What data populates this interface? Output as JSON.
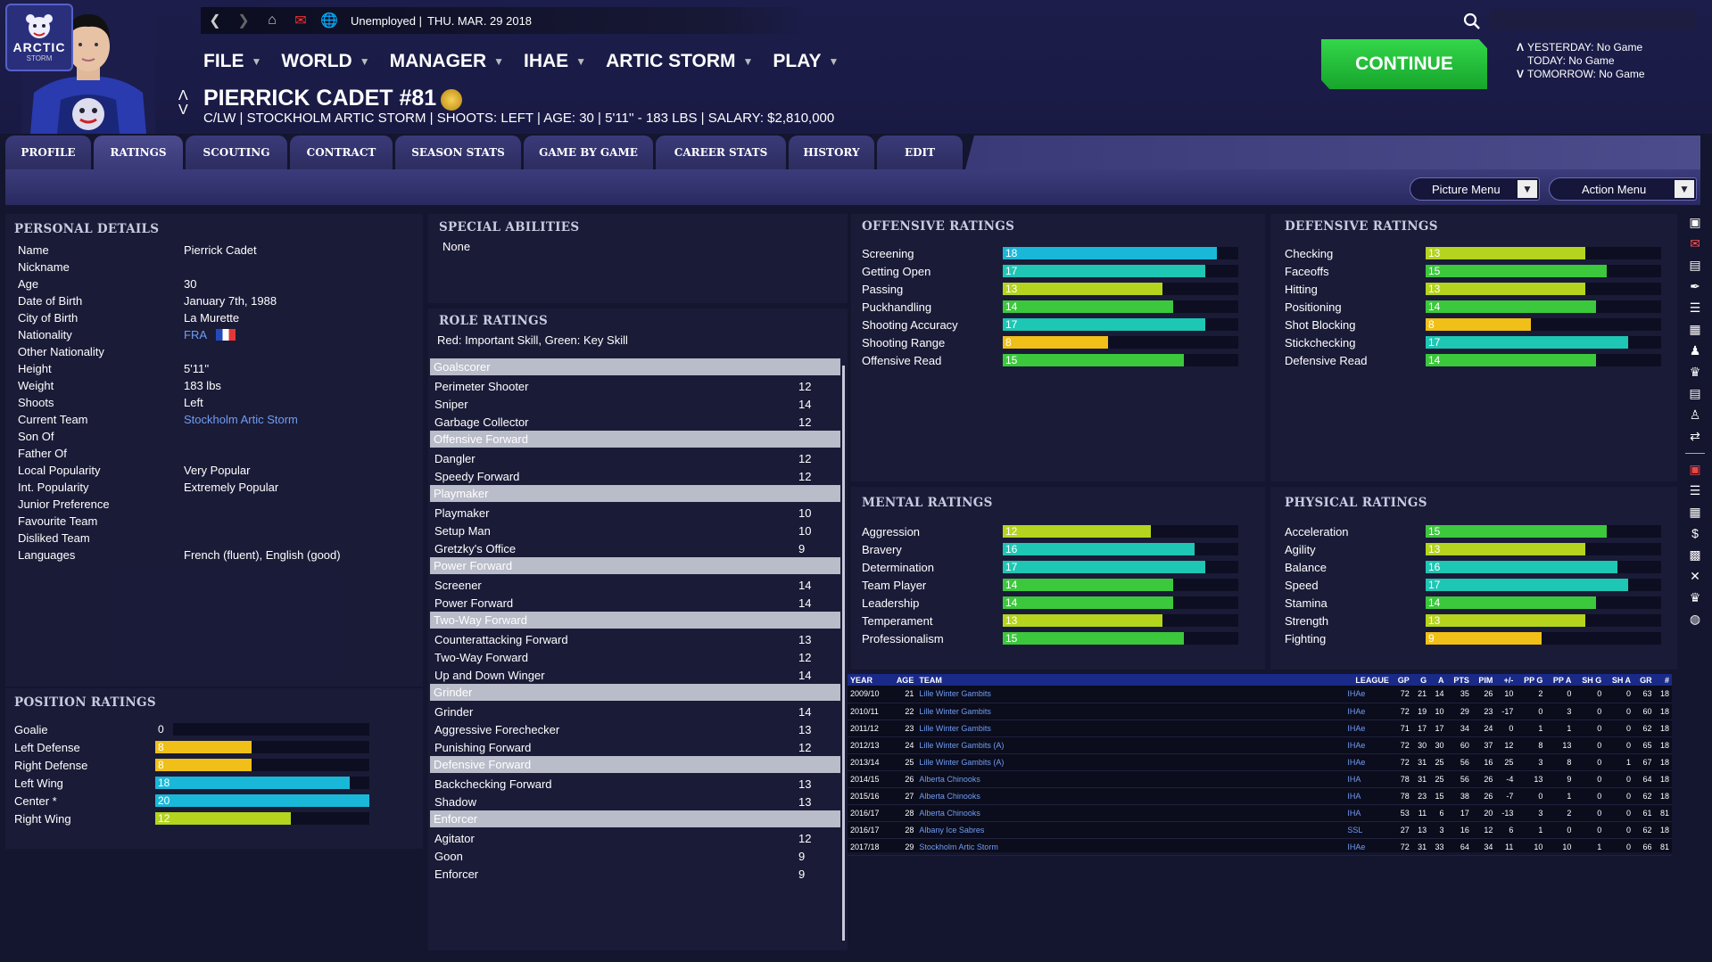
{
  "header": {
    "team_logo_text": "ARCTIC",
    "team_logo_sub": "STORM",
    "status": "Unemployed |",
    "date": "THU. MAR. 29 2018",
    "nav": [
      "FILE",
      "WORLD",
      "MANAGER",
      "IHAE",
      "ARTIC STORM",
      "PLAY"
    ],
    "player_name": "PIERRICK CADET #81",
    "player_info": "C/LW | STOCKHOLM ARTIC STORM | SHOOTS: LEFT | AGE: 30 | 5'11'' - 183 LBS | SALARY: $2,810,000",
    "continue_label": "CONTINUE",
    "schedule": [
      {
        "arrow": "Λ",
        "text": "YESTERDAY: No Game"
      },
      {
        "arrow": "",
        "text": "TODAY: No Game"
      },
      {
        "arrow": "V",
        "text": "TOMORROW: No Game"
      }
    ]
  },
  "tabs": [
    "PROFILE",
    "RATINGS",
    "SCOUTING",
    "CONTRACT",
    "SEASON STATS",
    "GAME BY GAME",
    "CAREER STATS",
    "HISTORY",
    "EDIT"
  ],
  "menus": {
    "picture": "Picture Menu",
    "action": "Action Menu"
  },
  "personal": {
    "title": "PERSONAL DETAILS",
    "rows": [
      {
        "k": "Name",
        "v": "Pierrick Cadet"
      },
      {
        "k": "Nickname",
        "v": ""
      },
      {
        "k": "Age",
        "v": "30"
      },
      {
        "k": "Date of Birth",
        "v": "January 7th, 1988"
      },
      {
        "k": "City of Birth",
        "v": "La Murette"
      },
      {
        "k": "Nationality",
        "v": "FRA",
        "link": true,
        "flag": true
      },
      {
        "k": "Other Nationality",
        "v": ""
      },
      {
        "k": "Height",
        "v": "5'11''"
      },
      {
        "k": "Weight",
        "v": "183 lbs"
      },
      {
        "k": "Shoots",
        "v": "Left"
      },
      {
        "k": "Current Team",
        "v": "Stockholm Artic Storm",
        "link": true
      },
      {
        "k": "Son Of",
        "v": ""
      },
      {
        "k": "Father Of",
        "v": ""
      },
      {
        "k": "Local Popularity",
        "v": "Very Popular"
      },
      {
        "k": "Int. Popularity",
        "v": "Extremely Popular"
      },
      {
        "k": "Junior Preference",
        "v": ""
      },
      {
        "k": "Favourite Team",
        "v": ""
      },
      {
        "k": "Disliked Team",
        "v": ""
      },
      {
        "k": "Languages",
        "v": "French (fluent), English (good)"
      }
    ]
  },
  "position": {
    "title": "POSITION RATINGS",
    "rows": [
      {
        "k": "Goalie",
        "v": 0
      },
      {
        "k": "Left Defense",
        "v": 8
      },
      {
        "k": "Right Defense",
        "v": 8
      },
      {
        "k": "Left Wing",
        "v": 18
      },
      {
        "k": "Center *",
        "v": 20
      },
      {
        "k": "Right Wing",
        "v": 12
      }
    ]
  },
  "special": {
    "title": "SPECIAL ABILITIES",
    "value": "None"
  },
  "role": {
    "title": "ROLE RATINGS",
    "note": "Red: Important Skill, Green: Key Skill",
    "groups": [
      {
        "name": "Goalscorer",
        "items": [
          [
            "Perimeter Shooter",
            "12"
          ],
          [
            "Sniper",
            "14"
          ],
          [
            "Garbage Collector",
            "12"
          ]
        ]
      },
      {
        "name": "Offensive Forward",
        "items": [
          [
            "Dangler",
            "12"
          ],
          [
            "Speedy Forward",
            "12"
          ]
        ]
      },
      {
        "name": "Playmaker",
        "items": [
          [
            "Playmaker",
            "10"
          ],
          [
            "Setup Man",
            "10"
          ],
          [
            "Gretzky's Office",
            "9"
          ]
        ]
      },
      {
        "name": "Power Forward",
        "items": [
          [
            "Screener",
            "14"
          ],
          [
            "Power Forward",
            "14"
          ]
        ]
      },
      {
        "name": "Two-Way Forward",
        "items": [
          [
            "Counterattacking Forward",
            "13"
          ],
          [
            "Two-Way Forward",
            "12"
          ],
          [
            "Up and Down Winger",
            "14"
          ]
        ]
      },
      {
        "name": "Grinder",
        "items": [
          [
            "Grinder",
            "14"
          ],
          [
            "Aggressive Forechecker",
            "13"
          ],
          [
            "Punishing Forward",
            "12"
          ]
        ]
      },
      {
        "name": "Defensive Forward",
        "items": [
          [
            "Backchecking Forward",
            "13"
          ],
          [
            "Shadow",
            "13"
          ]
        ]
      },
      {
        "name": "Enforcer",
        "items": [
          [
            "Agitator",
            "12"
          ],
          [
            "Goon",
            "9"
          ],
          [
            "Enforcer",
            "9"
          ]
        ]
      }
    ]
  },
  "offensive": {
    "title": "OFFENSIVE RATINGS",
    "rows": [
      [
        "Screening",
        18
      ],
      [
        "Getting Open",
        17
      ],
      [
        "Passing",
        13
      ],
      [
        "Puckhandling",
        14
      ],
      [
        "Shooting Accuracy",
        17
      ],
      [
        "Shooting Range",
        8
      ],
      [
        "Offensive Read",
        15
      ]
    ]
  },
  "defensive": {
    "title": "DEFENSIVE RATINGS",
    "rows": [
      [
        "Checking",
        13
      ],
      [
        "Faceoffs",
        15
      ],
      [
        "Hitting",
        13
      ],
      [
        "Positioning",
        14
      ],
      [
        "Shot Blocking",
        8
      ],
      [
        "Stickchecking",
        17
      ],
      [
        "Defensive Read",
        14
      ]
    ]
  },
  "mental": {
    "title": "MENTAL RATINGS",
    "rows": [
      [
        "Aggression",
        12
      ],
      [
        "Bravery",
        16
      ],
      [
        "Determination",
        17
      ],
      [
        "Team Player",
        14
      ],
      [
        "Leadership",
        14
      ],
      [
        "Temperament",
        13
      ],
      [
        "Professionalism",
        15
      ]
    ]
  },
  "physical": {
    "title": "PHYSICAL RATINGS",
    "rows": [
      [
        "Acceleration",
        15
      ],
      [
        "Agility",
        13
      ],
      [
        "Balance",
        16
      ],
      [
        "Speed",
        17
      ],
      [
        "Stamina",
        14
      ],
      [
        "Strength",
        13
      ],
      [
        "Fighting",
        9
      ]
    ]
  },
  "colors": {
    "high": "#1ab8d8",
    "teal": "#1ec6b4",
    "green": "#3cc83c",
    "lime": "#b4d41e",
    "yellow": "#f0c018"
  },
  "history": {
    "headers": [
      "YEAR",
      "AGE",
      "TEAM",
      "LEAGUE",
      "GP",
      "G",
      "A",
      "PTS",
      "PIM",
      "+/-",
      "PP G",
      "PP A",
      "SH G",
      "SH A",
      "GR",
      "#"
    ],
    "rows": [
      [
        "2009/10",
        "21",
        "Lille Winter Gambits",
        "IHAe",
        "72",
        "21",
        "14",
        "35",
        "26",
        "10",
        "2",
        "0",
        "0",
        "0",
        "63",
        "18"
      ],
      [
        "2010/11",
        "22",
        "Lille Winter Gambits",
        "IHAe",
        "72",
        "19",
        "10",
        "29",
        "23",
        "-17",
        "0",
        "3",
        "0",
        "0",
        "60",
        "18"
      ],
      [
        "2011/12",
        "23",
        "Lille Winter Gambits",
        "IHAe",
        "71",
        "17",
        "17",
        "34",
        "24",
        "0",
        "1",
        "1",
        "0",
        "0",
        "62",
        "18"
      ],
      [
        "2012/13",
        "24",
        "Lille Winter Gambits (A)",
        "IHAe",
        "72",
        "30",
        "30",
        "60",
        "37",
        "12",
        "8",
        "13",
        "0",
        "0",
        "65",
        "18"
      ],
      [
        "2013/14",
        "25",
        "Lille Winter Gambits (A)",
        "IHAe",
        "72",
        "31",
        "25",
        "56",
        "16",
        "25",
        "3",
        "8",
        "0",
        "1",
        "67",
        "18"
      ],
      [
        "2014/15",
        "26",
        "Alberta Chinooks",
        "IHA",
        "78",
        "31",
        "25",
        "56",
        "26",
        "-4",
        "13",
        "9",
        "0",
        "0",
        "64",
        "18"
      ],
      [
        "2015/16",
        "27",
        "Alberta Chinooks",
        "IHA",
        "78",
        "23",
        "15",
        "38",
        "26",
        "-7",
        "0",
        "1",
        "0",
        "0",
        "62",
        "18"
      ],
      [
        "2016/17",
        "28",
        "Alberta Chinooks",
        "IHA",
        "53",
        "11",
        "6",
        "17",
        "20",
        "-13",
        "3",
        "2",
        "0",
        "0",
        "61",
        "81"
      ],
      [
        "2016/17",
        "28",
        "Albany Ice Sabres",
        "SSL",
        "27",
        "13",
        "3",
        "16",
        "12",
        "6",
        "1",
        "0",
        "0",
        "0",
        "62",
        "18"
      ],
      [
        "2017/18",
        "29",
        "Stockholm Artic Storm",
        "IHAe",
        "72",
        "31",
        "33",
        "64",
        "34",
        "11",
        "10",
        "10",
        "1",
        "0",
        "66",
        "81"
      ]
    ]
  }
}
